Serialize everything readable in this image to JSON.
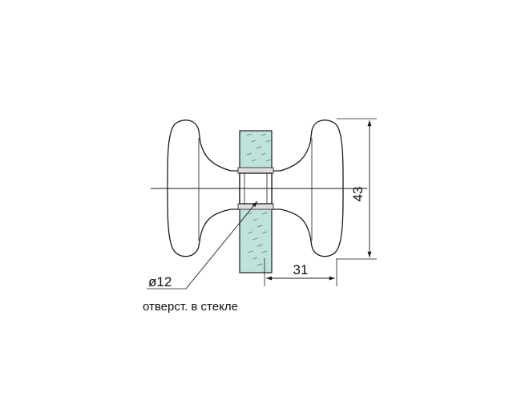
{
  "dimensions": {
    "height": "43",
    "depth": "31",
    "hole_diameter": "ø12"
  },
  "note": "отверст. в стекле",
  "colors": {
    "glass": "#bfe2dd",
    "line": "#1a1a1a",
    "background": "#ffffff"
  }
}
